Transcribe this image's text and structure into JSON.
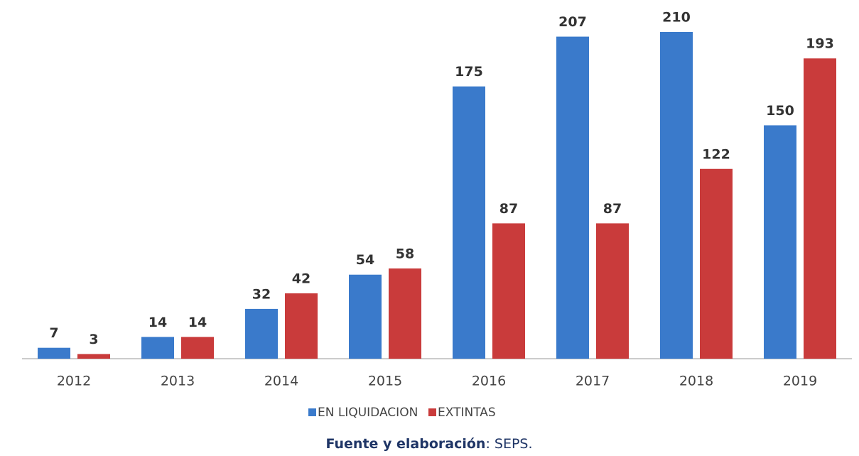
{
  "chart_data": {
    "type": "bar",
    "categories": [
      "2012",
      "2013",
      "2014",
      "2015",
      "2016",
      "2017",
      "2018",
      "2019"
    ],
    "series": [
      {
        "name": "EN LIQUIDACION",
        "color": "#3a7acb",
        "values": [
          7,
          14,
          32,
          54,
          175,
          207,
          210,
          150
        ]
      },
      {
        "name": "EXTINTAS",
        "color": "#c93b3b",
        "values": [
          3,
          14,
          42,
          58,
          87,
          87,
          122,
          193
        ]
      }
    ],
    "source_label": "Fuente y elaboración",
    "source": ": SEPS."
  }
}
